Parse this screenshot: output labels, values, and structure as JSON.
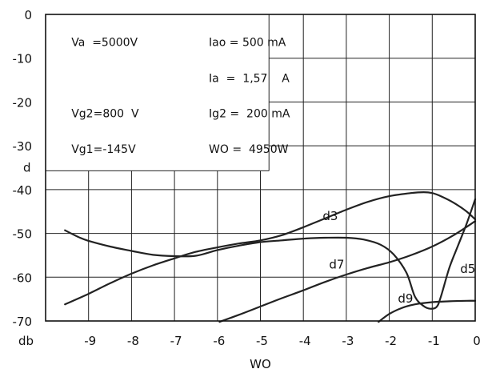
{
  "chart_data": {
    "type": "line",
    "title": "",
    "xlabel": "WO",
    "ylabel": "d",
    "x_unit_label": "db",
    "xlim": [
      -10,
      0
    ],
    "ylim": [
      -70,
      0
    ],
    "x_ticks": [
      -9,
      -8,
      -7,
      -6,
      -5,
      -4,
      -3,
      -2,
      -1,
      0
    ],
    "y_ticks": [
      0,
      -10,
      -20,
      -30,
      -40,
      -50,
      -60,
      -70
    ],
    "x_tick_labels": [
      "-9",
      "-8",
      "-7",
      "-6",
      "-5",
      "-4",
      "-3",
      "-2",
      "-1",
      "0"
    ],
    "y_tick_labels": [
      "0",
      "-10",
      "-20",
      "-30",
      "-40",
      "-50",
      "-60",
      "-70"
    ],
    "grid": true,
    "parameters": [
      {
        "label": "Va  =5000V",
        "x": -9.4,
        "y": -7.2
      },
      {
        "label": "Iao = 500 mA",
        "x": -6.2,
        "y": -7.2
      },
      {
        "label": "Ia  =  1,57    A",
        "x": -6.2,
        "y": -15.4
      },
      {
        "label": "Vg2=800  V",
        "x": -9.4,
        "y": -23.5
      },
      {
        "label": "Ig2 =  200 mA",
        "x": -6.2,
        "y": -23.5
      },
      {
        "label": "Vg1=-145V",
        "x": -9.4,
        "y": -31.6
      },
      {
        "label": "WO =  4950W",
        "x": -6.2,
        "y": -31.6
      }
    ],
    "series": [
      {
        "name": "d3",
        "label_pos": [
          -3.55,
          -47.0
        ],
        "x": [
          -9.55,
          -9,
          -8.5,
          -8,
          -7.5,
          -7,
          -6.5,
          -6,
          -5.5,
          -5,
          -4.5,
          -4,
          -3.5,
          -3,
          -2.5,
          -2,
          -1.5,
          -1.2,
          -1,
          -0.8,
          -0.5,
          -0.2,
          0
        ],
        "y": [
          -66.2,
          -63.8,
          -61.4,
          -59.2,
          -57.3,
          -55.7,
          -54.2,
          -53.2,
          -52.3,
          -51.6,
          -50.4,
          -48.6,
          -46.6,
          -44.6,
          -42.8,
          -41.5,
          -40.8,
          -40.6,
          -40.8,
          -41.5,
          -43.0,
          -45.0,
          -46.8
        ]
      },
      {
        "name": "d5",
        "label_pos": [
          -0.35,
          -59.0
        ],
        "x": [
          -9.55,
          -9.2,
          -9,
          -8.5,
          -8,
          -7.5,
          -7,
          -6.5,
          -6,
          -5.5,
          -5,
          -4.5,
          -4,
          -3.5,
          -3,
          -2.6,
          -2.2,
          -1.9,
          -1.6,
          -1.4,
          -1.2,
          -1.05,
          -0.9,
          -0.8,
          -0.6,
          -0.4,
          -0.2,
          0
        ],
        "y": [
          -49.3,
          -51.0,
          -51.7,
          -53.0,
          -54.0,
          -54.9,
          -55.2,
          -55.1,
          -53.8,
          -52.8,
          -52.0,
          -51.6,
          -51.2,
          -51.0,
          -51.0,
          -51.4,
          -52.6,
          -54.8,
          -59.0,
          -64.5,
          -66.6,
          -67.2,
          -66.8,
          -64.5,
          -57.8,
          -52.8,
          -47.8,
          -42.2
        ]
      },
      {
        "name": "d7",
        "label_pos": [
          -3.4,
          -58.0
        ],
        "x": [
          -5.95,
          -5.5,
          -5,
          -4.5,
          -4,
          -3.5,
          -3,
          -2.5,
          -2,
          -1.5,
          -1,
          -0.5,
          0
        ],
        "y": [
          -70.2,
          -68.6,
          -66.7,
          -64.8,
          -63.0,
          -61.1,
          -59.4,
          -57.9,
          -56.6,
          -55.0,
          -53.0,
          -50.4,
          -47.2
        ]
      },
      {
        "name": "d9",
        "label_pos": [
          -1.8,
          -65.8
        ],
        "x": [
          -2.25,
          -2,
          -1.7,
          -1.4,
          -1,
          -0.6,
          -0.2,
          0
        ],
        "y": [
          -70.2,
          -68.4,
          -67.0,
          -66.2,
          -65.7,
          -65.5,
          -65.4,
          -65.4
        ]
      }
    ]
  }
}
